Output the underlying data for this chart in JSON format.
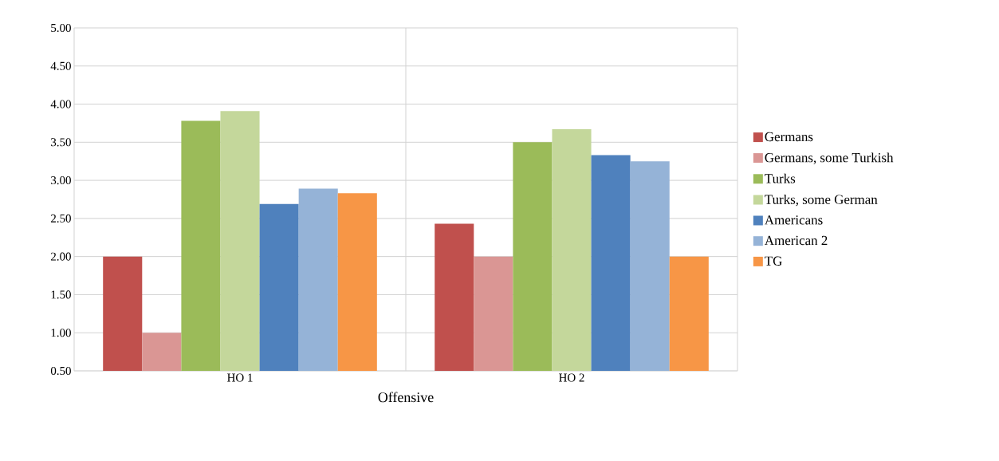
{
  "chart_data": {
    "type": "bar",
    "xlabel": "Offensive",
    "categories": [
      "HO 1",
      "HO 2"
    ],
    "series": [
      {
        "name": "Germans",
        "color": "#c0504d",
        "values": [
          2.0,
          2.43
        ]
      },
      {
        "name": "Germans, some Turkish",
        "color": "#da9694",
        "values": [
          1.0,
          2.0
        ]
      },
      {
        "name": "Turks",
        "color": "#9bbb59",
        "values": [
          3.78,
          3.5
        ]
      },
      {
        "name": "Turks, some German",
        "color": "#c4d79b",
        "values": [
          3.91,
          3.67
        ]
      },
      {
        "name": "Americans",
        "color": "#4f81bd",
        "values": [
          2.69,
          3.33
        ]
      },
      {
        "name": "American 2",
        "color": "#95b3d7",
        "values": [
          2.89,
          3.25
        ]
      },
      {
        "name": "TG",
        "color": "#f79646",
        "values": [
          2.83,
          2.0
        ]
      }
    ],
    "ylim": [
      0.5,
      5.0
    ],
    "yticks": [
      {
        "value": 0.5,
        "label": "0.50"
      },
      {
        "value": 1.0,
        "label": "1.00"
      },
      {
        "value": 1.5,
        "label": "1.50"
      },
      {
        "value": 2.0,
        "label": "2.00"
      },
      {
        "value": 2.5,
        "label": "2.50"
      },
      {
        "value": 3.0,
        "label": "3.00"
      },
      {
        "value": 3.5,
        "label": "3.50"
      },
      {
        "value": 4.0,
        "label": "4.00"
      },
      {
        "value": 4.5,
        "label": "4.50"
      },
      {
        "value": 5.0,
        "label": "5.00"
      }
    ],
    "grid": true,
    "legend": "right"
  }
}
